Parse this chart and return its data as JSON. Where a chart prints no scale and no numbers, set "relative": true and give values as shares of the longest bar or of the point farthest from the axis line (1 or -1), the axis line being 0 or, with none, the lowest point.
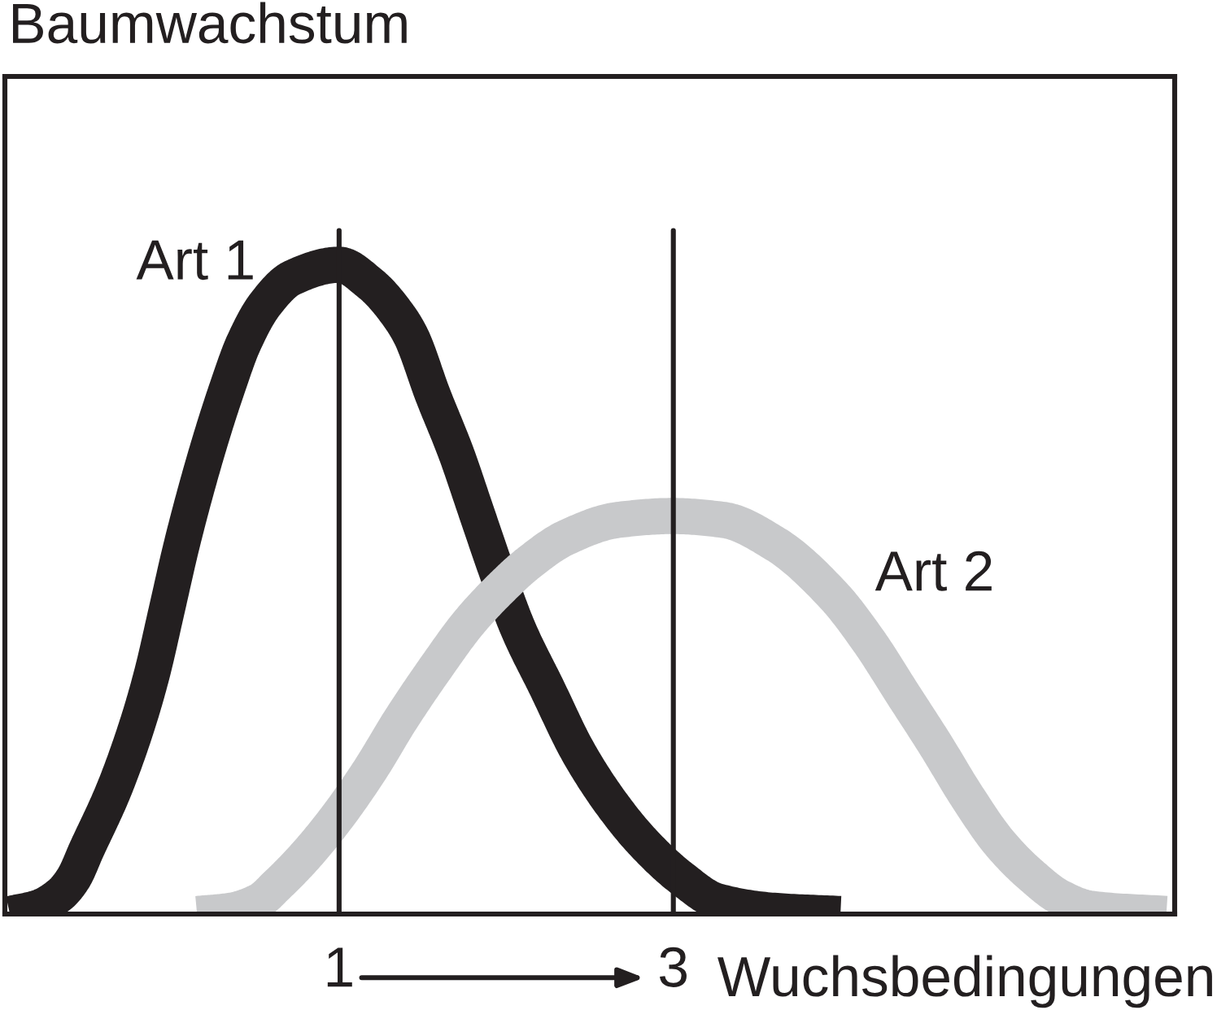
{
  "chart_data": {
    "type": "line",
    "relative": true,
    "ylabel": "Baumwachstum",
    "xlabel": "Wuchsbedingungen",
    "xlim": [
      -1,
      6
    ],
    "xticks": [
      1,
      3
    ],
    "tick_labels": "x",
    "line_style": "solid",
    "ref_lines": [
      {
        "axis": "x",
        "value": 1,
        "color": "#231f20"
      },
      {
        "axis": "x",
        "value": 3,
        "color": "#231f20"
      }
    ],
    "series": [
      {
        "name": "Art 1",
        "color": "#231f20",
        "x": [
          -0.97,
          -0.8,
          -0.67,
          -0.59,
          -0.51,
          -0.35,
          -0.21,
          -0.12,
          -0.03,
          0.05,
          0.13,
          0.23,
          0.33,
          0.43,
          0.56,
          0.72,
          1.0,
          1.19,
          1.36,
          1.43,
          1.56,
          1.7,
          1.82,
          1.94,
          2.07,
          2.24,
          2.43,
          2.63,
          2.82,
          3.05,
          3.26,
          3.6,
          4.0
        ],
        "values": [
          0.0,
          0.01,
          0.03,
          0.055,
          0.1,
          0.19,
          0.29,
          0.37,
          0.47,
          0.56,
          0.64,
          0.73,
          0.81,
          0.88,
          0.94,
          0.98,
          1.0,
          0.97,
          0.92,
          0.89,
          0.8,
          0.71,
          0.62,
          0.53,
          0.44,
          0.35,
          0.25,
          0.17,
          0.11,
          0.055,
          0.02,
          0.005,
          0.0
        ]
      },
      {
        "name": "Art 2",
        "color": "#c8c9cb",
        "x": [
          0.15,
          0.35,
          0.52,
          0.63,
          0.8,
          0.99,
          1.18,
          1.37,
          1.58,
          1.78,
          2.0,
          2.13,
          2.36,
          2.67,
          2.99,
          3.3,
          3.61,
          3.96,
          4.17,
          4.37,
          4.57,
          4.76,
          4.95,
          5.14,
          5.32,
          5.5,
          5.95
        ],
        "values": [
          0.0,
          0.005,
          0.02,
          0.045,
          0.09,
          0.15,
          0.22,
          0.3,
          0.38,
          0.45,
          0.51,
          0.54,
          0.58,
          0.607,
          0.613,
          0.607,
          0.57,
          0.49,
          0.42,
          0.34,
          0.26,
          0.18,
          0.11,
          0.06,
          0.025,
          0.008,
          0.0
        ]
      }
    ]
  }
}
